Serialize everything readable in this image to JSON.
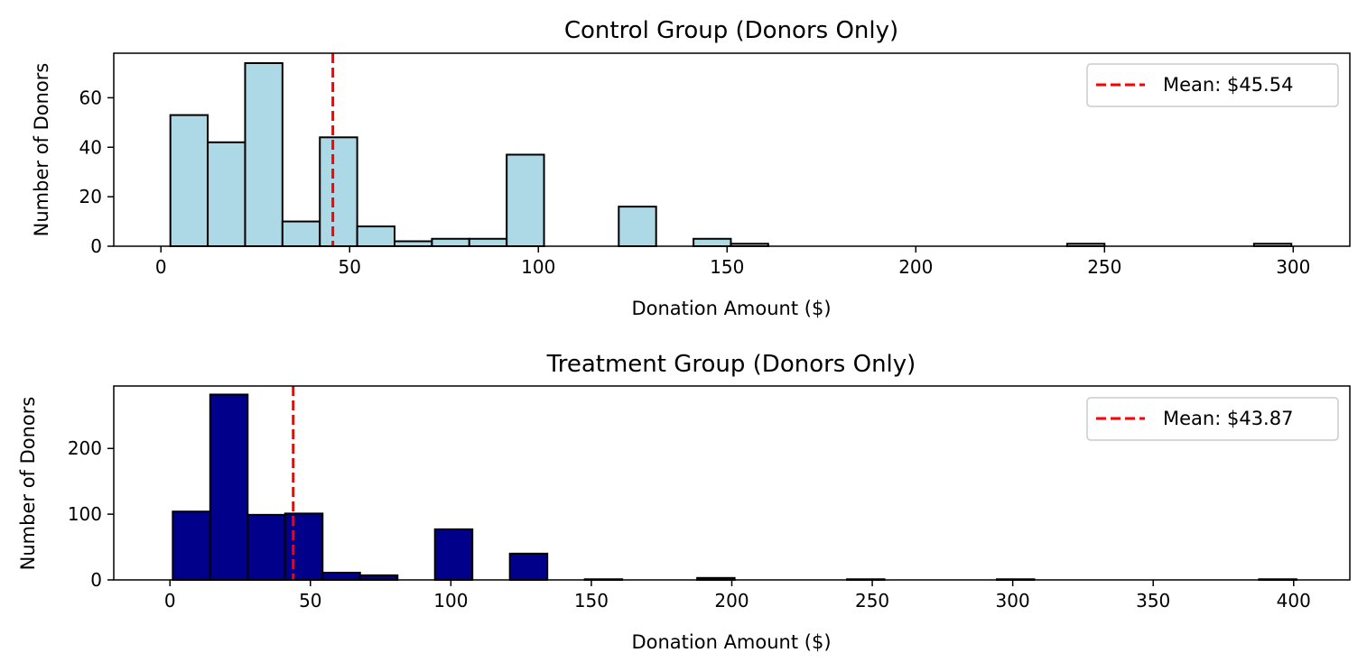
{
  "chart_data": [
    {
      "type": "bar",
      "title": "Control Group (Donors Only)",
      "xlabel": "Donation Amount ($)",
      "ylabel": "Number of Donors",
      "xlim": [
        -12.5,
        315
      ],
      "ylim": [
        0,
        78
      ],
      "xticks": [
        0,
        50,
        100,
        150,
        200,
        250,
        300
      ],
      "yticks": [
        0,
        20,
        40,
        60
      ],
      "bar_color": "#add8e6",
      "edge_color": "#000000",
      "bin_width": 9.9,
      "bins": [
        {
          "x": 2.5,
          "count": 53
        },
        {
          "x": 12.4,
          "count": 42
        },
        {
          "x": 22.3,
          "count": 74
        },
        {
          "x": 32.2,
          "count": 10
        },
        {
          "x": 42.1,
          "count": 44
        },
        {
          "x": 52.0,
          "count": 8
        },
        {
          "x": 61.9,
          "count": 2
        },
        {
          "x": 71.8,
          "count": 3
        },
        {
          "x": 81.7,
          "count": 3
        },
        {
          "x": 91.6,
          "count": 37
        },
        {
          "x": 101.5,
          "count": 0
        },
        {
          "x": 111.4,
          "count": 0
        },
        {
          "x": 121.3,
          "count": 16
        },
        {
          "x": 131.2,
          "count": 0
        },
        {
          "x": 141.1,
          "count": 3
        },
        {
          "x": 151.0,
          "count": 1
        },
        {
          "x": 160.9,
          "count": 0
        },
        {
          "x": 170.8,
          "count": 0
        },
        {
          "x": 180.7,
          "count": 0
        },
        {
          "x": 190.6,
          "count": 0
        },
        {
          "x": 200.5,
          "count": 0
        },
        {
          "x": 210.4,
          "count": 0
        },
        {
          "x": 220.3,
          "count": 0
        },
        {
          "x": 230.2,
          "count": 0
        },
        {
          "x": 240.1,
          "count": 1
        },
        {
          "x": 250.0,
          "count": 0
        },
        {
          "x": 259.9,
          "count": 0
        },
        {
          "x": 269.8,
          "count": 0
        },
        {
          "x": 279.7,
          "count": 0
        },
        {
          "x": 289.6,
          "count": 1
        }
      ],
      "mean": {
        "value": 45.54,
        "label": "Mean: $45.54",
        "color": "#ff0000"
      },
      "legend_placement": "top-right"
    },
    {
      "type": "bar",
      "title": "Treatment Group (Donors Only)",
      "xlabel": "Donation Amount ($)",
      "ylabel": "Number of Donors",
      "xlim": [
        -20,
        420
      ],
      "ylim": [
        0,
        295
      ],
      "xticks": [
        0,
        50,
        100,
        150,
        200,
        250,
        300,
        350,
        400
      ],
      "yticks": [
        0,
        100,
        200
      ],
      "bar_color": "#00008b",
      "edge_color": "#000000",
      "bin_width": 13.33,
      "bins": [
        {
          "x": 1.0,
          "count": 104
        },
        {
          "x": 14.33,
          "count": 282
        },
        {
          "x": 27.67,
          "count": 99
        },
        {
          "x": 41.0,
          "count": 101
        },
        {
          "x": 54.33,
          "count": 11
        },
        {
          "x": 67.67,
          "count": 7
        },
        {
          "x": 81.0,
          "count": 0
        },
        {
          "x": 94.33,
          "count": 77
        },
        {
          "x": 107.67,
          "count": 0
        },
        {
          "x": 121.0,
          "count": 40
        },
        {
          "x": 134.33,
          "count": 0
        },
        {
          "x": 147.67,
          "count": 1
        },
        {
          "x": 161.0,
          "count": 0
        },
        {
          "x": 174.33,
          "count": 0
        },
        {
          "x": 187.67,
          "count": 3
        },
        {
          "x": 201.0,
          "count": 0
        },
        {
          "x": 214.33,
          "count": 0
        },
        {
          "x": 227.67,
          "count": 0
        },
        {
          "x": 241.0,
          "count": 1
        },
        {
          "x": 254.33,
          "count": 0
        },
        {
          "x": 267.67,
          "count": 0
        },
        {
          "x": 281.0,
          "count": 0
        },
        {
          "x": 294.33,
          "count": 1
        },
        {
          "x": 307.67,
          "count": 0
        },
        {
          "x": 321.0,
          "count": 0
        },
        {
          "x": 334.33,
          "count": 0
        },
        {
          "x": 347.67,
          "count": 0
        },
        {
          "x": 361.0,
          "count": 0
        },
        {
          "x": 374.33,
          "count": 0
        },
        {
          "x": 387.67,
          "count": 1
        }
      ],
      "mean": {
        "value": 43.87,
        "label": "Mean: $43.87",
        "color": "#ff0000"
      },
      "legend_placement": "top-right"
    }
  ]
}
